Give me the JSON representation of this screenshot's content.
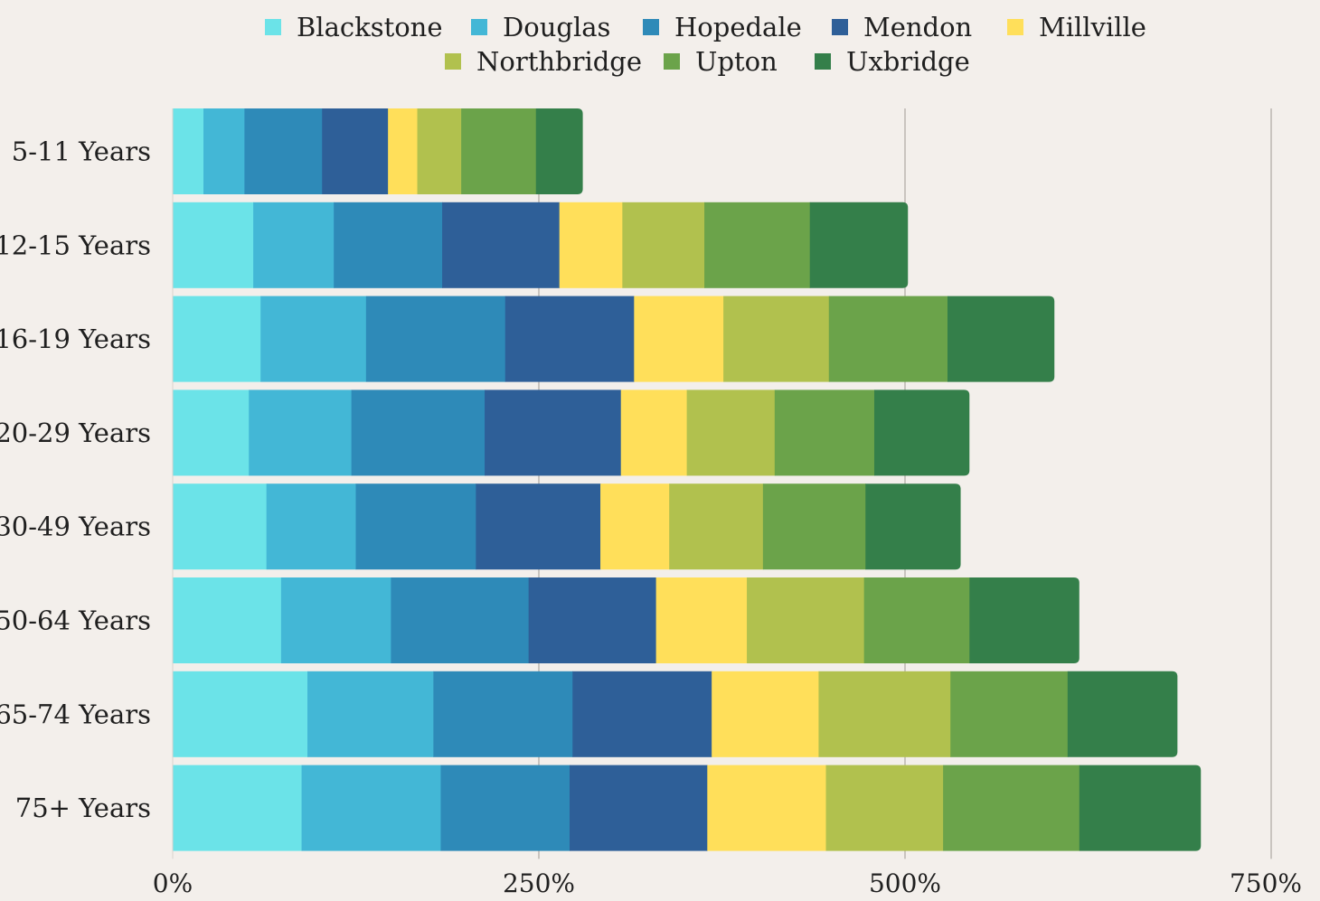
{
  "chart_data": {
    "type": "bar",
    "orientation": "horizontal",
    "stacked": true,
    "title": "",
    "xlabel": "",
    "ylabel": "",
    "xlim": [
      0,
      750
    ],
    "x_ticks": [
      "0%",
      "250%",
      "500%",
      "750%"
    ],
    "x_tick_values": [
      0,
      250,
      500,
      750
    ],
    "grid": "vertical",
    "legend_position": "top",
    "categories": [
      "5-11 Years",
      "12-15 Years",
      "16-19 Years",
      "20-29 Years",
      "30-49 Years",
      "50-64 Years",
      "65-74 Years",
      "75+ Years"
    ],
    "series": [
      {
        "name": "Blackstone",
        "color": "#6be3e8",
        "values": [
          21,
          55,
          60,
          52,
          64,
          74,
          92,
          88
        ]
      },
      {
        "name": "Douglas",
        "color": "#43b7d6",
        "values": [
          28,
          55,
          72,
          70,
          61,
          75,
          86,
          95
        ]
      },
      {
        "name": "Hopedale",
        "color": "#2e8ab8",
        "values": [
          53,
          74,
          95,
          91,
          82,
          94,
          95,
          88
        ]
      },
      {
        "name": "Mendon",
        "color": "#2e5f98",
        "values": [
          45,
          80,
          88,
          93,
          85,
          87,
          95,
          94
        ]
      },
      {
        "name": "Millville",
        "color": "#ffdf5a",
        "values": [
          20,
          43,
          61,
          45,
          47,
          62,
          73,
          81
        ]
      },
      {
        "name": "Northbridge",
        "color": "#b1c14e",
        "values": [
          30,
          56,
          72,
          60,
          64,
          80,
          90,
          80
        ]
      },
      {
        "name": "Upton",
        "color": "#6ba34a",
        "values": [
          51,
          72,
          81,
          68,
          70,
          72,
          80,
          93
        ]
      },
      {
        "name": "Uxbridge",
        "color": "#347f4a",
        "values": [
          32,
          67,
          73,
          65,
          65,
          75,
          75,
          83
        ]
      }
    ]
  }
}
